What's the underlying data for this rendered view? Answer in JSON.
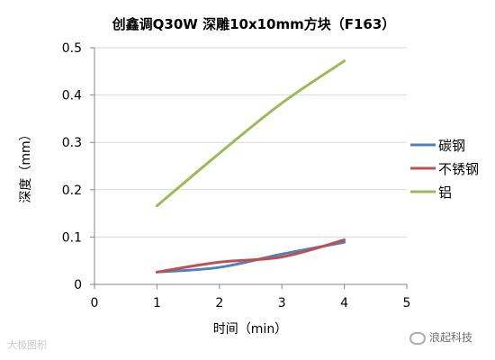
{
  "chart_data": {
    "type": "line",
    "title": "创鑫调Q30W  深雕10x10mm方块（F163）",
    "xlabel": "时间（min）",
    "ylabel": "深度（mm）",
    "xlim": [
      0,
      5
    ],
    "ylim": [
      0,
      0.5
    ],
    "xticks": [
      "0",
      "1",
      "2",
      "3",
      "4",
      "5"
    ],
    "yticks": [
      "0",
      "0.1",
      "0.2",
      "0.3",
      "0.4",
      "0.5"
    ],
    "grid": "horizontal",
    "legend_position": "right",
    "series": [
      {
        "name": "碳钢",
        "color": "#4f81bd",
        "points": [
          [
            1,
            0.026
          ],
          [
            2,
            0.036
          ],
          [
            3,
            0.064
          ],
          [
            4,
            0.089
          ]
        ]
      },
      {
        "name": "不锈钢",
        "color": "#c0504d",
        "points": [
          [
            1,
            0.026
          ],
          [
            2,
            0.047
          ],
          [
            3,
            0.058
          ],
          [
            4,
            0.094
          ]
        ]
      },
      {
        "name": "铝",
        "color": "#9bbb59",
        "points": [
          [
            1,
            0.166
          ],
          [
            2,
            0.277
          ],
          [
            3,
            0.383
          ],
          [
            4,
            0.472
          ]
        ]
      }
    ]
  },
  "watermarks": {
    "left": "大极图积",
    "right": "浪起科技"
  }
}
